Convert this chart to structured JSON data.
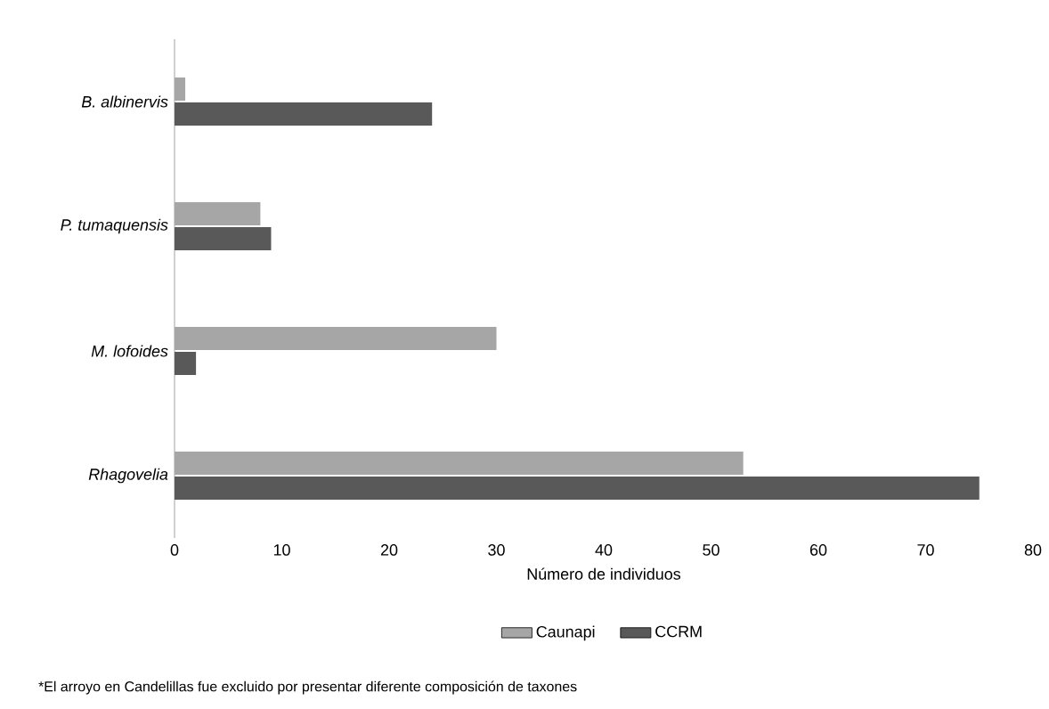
{
  "chart_data": {
    "type": "bar",
    "orientation": "horizontal",
    "categories": [
      "B. albinervis",
      "P. tumaquensis",
      "M. lofoides",
      "Rhagovelia"
    ],
    "series": [
      {
        "name": "Caunapi",
        "color": "#a6a6a6",
        "values": [
          1,
          8,
          30,
          53
        ]
      },
      {
        "name": "CCRM",
        "color": "#595959",
        "values": [
          24,
          9,
          2,
          75
        ]
      }
    ],
    "xlabel": "Número de individuos",
    "xlim": [
      0,
      80
    ],
    "xticks": [
      0,
      10,
      20,
      30,
      40,
      50,
      60,
      70,
      80
    ],
    "legend": "bottom",
    "annotations": [
      "*El arroyo en Candelillas  fue excluido por presentar diferente composición de taxones"
    ]
  }
}
